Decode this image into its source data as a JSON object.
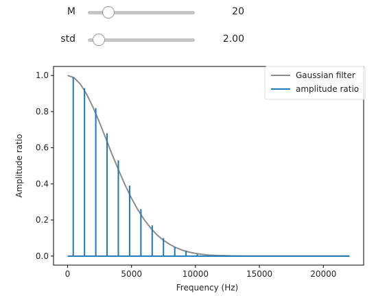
{
  "controls": [
    {
      "label": "M",
      "value": "20",
      "fraction": 0.19
    },
    {
      "label": "std",
      "value": "2.00",
      "fraction": 0.1
    }
  ],
  "chart_data": {
    "type": "line",
    "xlabel": "Frequency (Hz)",
    "ylabel": "Amplitude ratio",
    "xlim": [
      -1100,
      23150
    ],
    "ylim": [
      -0.05,
      1.05
    ],
    "xticks": [
      0,
      5000,
      10000,
      15000,
      20000
    ],
    "yticks": [
      0.0,
      0.2,
      0.4,
      0.6,
      0.8,
      1.0
    ],
    "ytick_labels": [
      "0.0",
      "0.2",
      "0.4",
      "0.6",
      "0.8",
      "1.0"
    ],
    "grid": false,
    "legend_placement": "top-right",
    "series": [
      {
        "name": "Gaussian filter",
        "kind": "line",
        "color": "#8c8c8c",
        "x": [
          0,
          500,
          1000,
          1500,
          2000,
          2500,
          3000,
          3500,
          4000,
          4500,
          5000,
          5500,
          6000,
          6500,
          7000,
          7500,
          8000,
          8500,
          9000,
          9500,
          10000,
          10500,
          11000,
          11500,
          12000,
          13000,
          14000,
          16000,
          18000,
          20000,
          22050
        ],
        "y": [
          1.0,
          0.988,
          0.952,
          0.895,
          0.822,
          0.739,
          0.65,
          0.56,
          0.474,
          0.393,
          0.32,
          0.256,
          0.201,
          0.155,
          0.117,
          0.087,
          0.064,
          0.046,
          0.032,
          0.022,
          0.015,
          0.01,
          0.006,
          0.004,
          0.003,
          0.001,
          0.0,
          0.0,
          0.0,
          0.0,
          0.0
        ]
      },
      {
        "name": "amplitude ratio",
        "kind": "stem",
        "color": "#1f77b4",
        "x": [
          441,
          1323,
          2205,
          3087,
          3969,
          4851,
          5733,
          6615,
          7497,
          8379,
          9261,
          10143,
          11025,
          11907,
          12789,
          13671,
          14553,
          15435,
          16317,
          17199
        ],
        "y": [
          0.99,
          0.93,
          0.82,
          0.68,
          0.53,
          0.39,
          0.26,
          0.17,
          0.1,
          0.05,
          0.03,
          0.01,
          0.005,
          0.0,
          0.0,
          0.0,
          0.0,
          0.0,
          0.0,
          0.0
        ]
      }
    ]
  }
}
